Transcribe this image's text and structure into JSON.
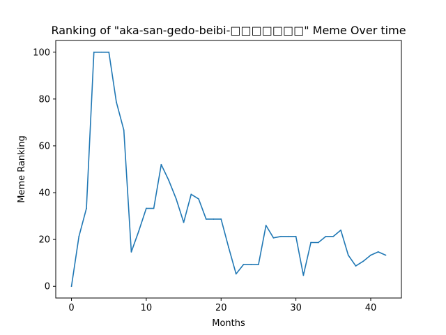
{
  "chart_data": {
    "type": "line",
    "title": "Ranking of \"aka-san-gedo-beibi-□□□□□□□\" Meme Over time",
    "xlabel": "Months",
    "ylabel": "Meme Ranking",
    "xlim": [
      -2.1,
      44.1
    ],
    "ylim": [
      -5,
      105
    ],
    "x_ticks": [
      0,
      10,
      20,
      30,
      40
    ],
    "y_ticks": [
      0,
      20,
      40,
      60,
      80,
      100
    ],
    "grid": false,
    "line_color": "#1f77b4",
    "series": [
      {
        "x": [
          0,
          1,
          2,
          3,
          4,
          5,
          6,
          7,
          8,
          9,
          10,
          11,
          12,
          13,
          14,
          15,
          16,
          17,
          18,
          19,
          20,
          21,
          22,
          23,
          24,
          25,
          26,
          27,
          28,
          29,
          30,
          31,
          32,
          33,
          34,
          35,
          36,
          37,
          38,
          39,
          40,
          41,
          42
        ],
        "values": [
          0,
          21.3,
          33.3,
          100,
          100,
          100,
          78.7,
          66.7,
          14.7,
          23.6,
          33.3,
          33.3,
          52,
          45.3,
          37.3,
          27.3,
          39.3,
          37.3,
          28.7,
          28.7,
          28.7,
          16.7,
          5.3,
          9.3,
          9.3,
          9.3,
          26,
          20.7,
          21.3,
          21.3,
          21.3,
          4.7,
          18.7,
          18.7,
          21.3,
          21.3,
          24,
          13.3,
          8.7,
          10.7,
          13.3,
          14.7,
          13.3
        ]
      }
    ]
  }
}
